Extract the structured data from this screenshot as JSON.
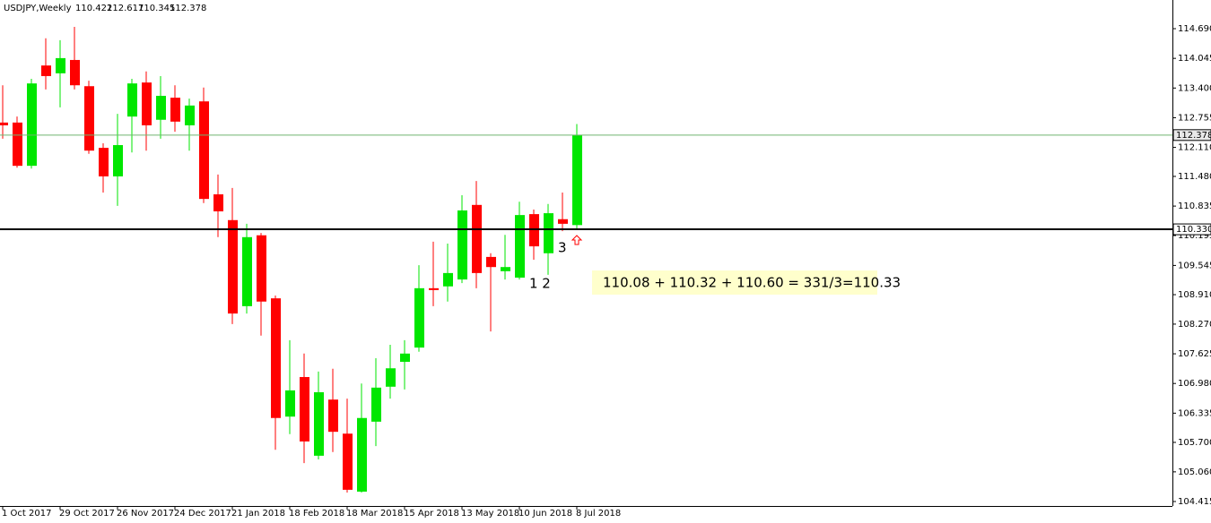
{
  "chart_data": {
    "type": "candlestick",
    "title": "USDJPY,Weekly",
    "header_ohlc": [
      110.422,
      112.617,
      110.345,
      112.378
    ],
    "x": [
      "1 Oct 2017",
      null,
      null,
      null,
      "29 Oct 2017",
      null,
      null,
      null,
      "26 Nov 2017",
      null,
      null,
      null,
      "24 Dec 2017",
      null,
      null,
      null,
      "21 Jan 2018",
      null,
      null,
      null,
      "18 Feb 2018",
      null,
      null,
      null,
      "18 Mar 2018",
      null,
      null,
      null,
      "15 Apr 2018",
      null,
      null,
      null,
      "13 May 2018",
      null,
      null,
      null,
      "10 Jun 2018",
      null,
      null,
      null,
      "8 Jul 2018"
    ],
    "open": [
      112.65,
      112.65,
      111.71,
      113.89,
      113.72,
      114.01,
      113.44,
      112.1,
      111.48,
      112.78,
      113.52,
      112.71,
      113.19,
      112.59,
      113.11,
      111.09,
      110.53,
      108.66,
      110.2,
      108.83,
      106.26,
      107.12,
      105.41,
      106.63,
      105.89,
      104.63,
      106.15,
      106.91,
      107.45,
      107.76,
      109.05,
      109.09,
      109.24,
      110.86,
      109.73,
      109.42,
      109.28,
      110.66,
      109.81,
      110.55,
      110.422
    ],
    "high": [
      113.46,
      112.78,
      113.6,
      114.48,
      114.44,
      114.73,
      113.56,
      112.2,
      112.84,
      113.6,
      113.76,
      113.66,
      113.46,
      113.17,
      113.41,
      111.52,
      111.23,
      110.45,
      110.25,
      108.89,
      107.92,
      107.63,
      107.24,
      107.3,
      106.65,
      106.98,
      107.53,
      107.82,
      107.92,
      109.55,
      110.06,
      110.02,
      111.07,
      111.38,
      109.81,
      110.21,
      110.93,
      110.76,
      110.88,
      111.13,
      112.617
    ],
    "low": [
      112.3,
      111.67,
      111.65,
      113.37,
      112.98,
      113.37,
      111.97,
      111.13,
      110.84,
      112.0,
      112.04,
      112.3,
      112.45,
      112.04,
      110.9,
      110.16,
      108.27,
      108.5,
      108.02,
      105.54,
      105.88,
      105.25,
      105.33,
      105.49,
      104.61,
      104.61,
      105.62,
      106.65,
      106.85,
      107.67,
      108.66,
      108.76,
      109.16,
      109.05,
      108.11,
      109.24,
      109.24,
      109.67,
      109.34,
      110.29,
      110.345
    ],
    "close": [
      112.59,
      111.71,
      113.5,
      113.66,
      114.05,
      113.46,
      112.04,
      111.48,
      112.16,
      113.5,
      112.59,
      113.23,
      112.67,
      113.02,
      110.99,
      110.72,
      108.5,
      110.16,
      108.76,
      106.23,
      106.83,
      105.72,
      106.79,
      105.93,
      104.67,
      106.23,
      106.89,
      107.31,
      107.63,
      109.05,
      109.01,
      109.38,
      110.74,
      109.38,
      109.51,
      109.51,
      110.64,
      109.96,
      110.68,
      110.45,
      112.378
    ],
    "up_color": "#00e600",
    "down_color": "#ff0000",
    "ylim": [
      104.318,
      115.313
    ],
    "yticks": [
      {
        "value": 114.69,
        "label": "114.690"
      },
      114.045,
      {
        "value": 113.4,
        "label": "113.400"
      },
      112.755,
      {
        "value": 112.11,
        "label": "112.110"
      },
      {
        "value": 111.48,
        "label": "111.480"
      },
      110.835,
      110.195,
      109.545,
      {
        "value": 108.91,
        "label": "108.910"
      },
      {
        "value": 108.27,
        "label": "108.270"
      },
      107.625,
      {
        "value": 106.98,
        "label": "106.980"
      },
      106.335,
      {
        "value": 105.7,
        "label": "105.700"
      },
      {
        "value": 105.06,
        "label": "105.060"
      },
      104.415
    ],
    "hlines": [
      {
        "value": 112.378,
        "color": "#6fb56f"
      },
      {
        "value": 110.33,
        "label": "110.330",
        "color": "#000000"
      }
    ],
    "annotations": [
      "1 2",
      "3",
      "110.08 + 110.32 + 110.60 = 331/3=110.33"
    ]
  }
}
